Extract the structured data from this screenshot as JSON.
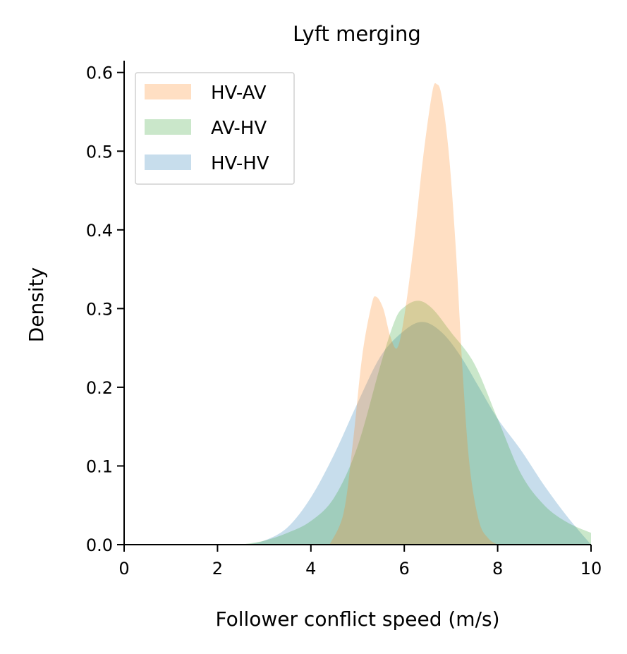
{
  "chart_data": {
    "type": "area",
    "title": "Lyft merging",
    "xlabel": "Follower conflict speed (m/s)",
    "ylabel": "Density",
    "xlim": [
      0,
      10
    ],
    "ylim": [
      0,
      0.615
    ],
    "xticks": [
      0,
      2,
      4,
      6,
      8,
      10
    ],
    "yticks": [
      0.0,
      0.1,
      0.2,
      0.3,
      0.4,
      0.5,
      0.6
    ],
    "xtick_labels": [
      "0",
      "2",
      "4",
      "6",
      "8",
      "10"
    ],
    "ytick_labels": [
      "0.0",
      "0.1",
      "0.2",
      "0.3",
      "0.4",
      "0.5",
      "0.6"
    ],
    "grid": false,
    "legend_position": "top-left",
    "series": [
      {
        "name": "HV-HV",
        "color": "#1f77b4",
        "opacity": 0.25,
        "x": [
          2.6,
          3.0,
          3.5,
          4.0,
          4.5,
          5.0,
          5.5,
          6.0,
          6.4,
          6.8,
          7.2,
          7.6,
          8.0,
          8.5,
          9.0,
          9.5,
          10.0
        ],
        "y": [
          0.0,
          0.005,
          0.022,
          0.06,
          0.115,
          0.18,
          0.24,
          0.272,
          0.283,
          0.27,
          0.24,
          0.2,
          0.16,
          0.12,
          0.075,
          0.035,
          0.0
        ]
      },
      {
        "name": "AV-HV",
        "color": "#2ca02c",
        "opacity": 0.25,
        "x": [
          2.5,
          3.0,
          3.5,
          4.0,
          4.5,
          5.0,
          5.5,
          5.8,
          6.0,
          6.3,
          6.6,
          7.0,
          7.5,
          8.0,
          8.5,
          9.0,
          9.5,
          10.0
        ],
        "y": [
          0.0,
          0.005,
          0.015,
          0.03,
          0.06,
          0.125,
          0.23,
          0.285,
          0.302,
          0.31,
          0.3,
          0.27,
          0.23,
          0.16,
          0.09,
          0.05,
          0.028,
          0.015
        ]
      },
      {
        "name": "HV-AV",
        "color": "#ff7f0e",
        "opacity": 0.25,
        "x": [
          4.4,
          4.7,
          4.9,
          5.1,
          5.3,
          5.4,
          5.55,
          5.7,
          5.85,
          6.0,
          6.2,
          6.4,
          6.6,
          6.7,
          6.8,
          6.95,
          7.1,
          7.25,
          7.4,
          7.6,
          7.8,
          8.0
        ],
        "y": [
          0.0,
          0.04,
          0.13,
          0.24,
          0.305,
          0.315,
          0.3,
          0.265,
          0.25,
          0.29,
          0.38,
          0.49,
          0.575,
          0.585,
          0.57,
          0.5,
          0.38,
          0.22,
          0.1,
          0.03,
          0.008,
          0.0
        ]
      }
    ],
    "legend": [
      {
        "label": "HV-AV",
        "color": "#ff7f0e"
      },
      {
        "label": "AV-HV",
        "color": "#2ca02c"
      },
      {
        "label": "HV-HV",
        "color": "#1f77b4"
      }
    ]
  }
}
